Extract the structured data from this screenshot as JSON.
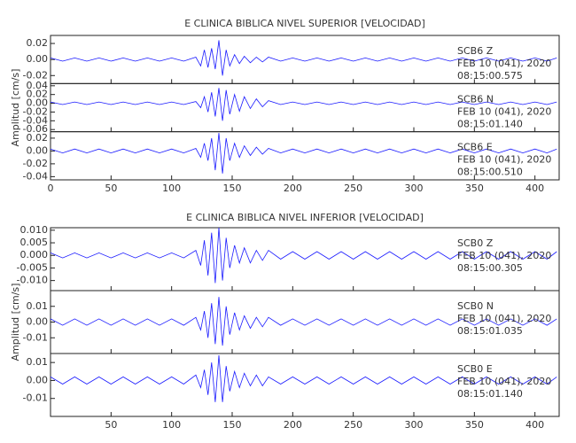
{
  "chart_data": [
    {
      "type": "line",
      "title": "E CLINICA BIBLICA NIVEL SUPERIOR [VELOCIDAD]",
      "ylabel": "Amplitud [cm/s]",
      "xlim": [
        0,
        420
      ],
      "xticks": [
        0,
        50,
        100,
        150,
        200,
        250,
        300,
        350,
        400
      ],
      "x": [
        0,
        10,
        20,
        30,
        40,
        50,
        60,
        70,
        80,
        90,
        100,
        110,
        120,
        124,
        127,
        130,
        133,
        136,
        139,
        142,
        145,
        148,
        152,
        156,
        160,
        165,
        170,
        175,
        180,
        190,
        200,
        210,
        220,
        230,
        240,
        250,
        260,
        270,
        280,
        290,
        300,
        310,
        320,
        330,
        340,
        350,
        360,
        370,
        380,
        390,
        400,
        410,
        418
      ],
      "series": [
        {
          "name": "SCB6   Z",
          "date": "FEB 10 (041), 2020",
          "time": "08:15:00.575",
          "color": "#1a1aff",
          "ylim": [
            -0.03,
            0.03
          ],
          "yticks": [
            {
              "value": 0.02,
              "label": "0.02"
            },
            {
              "value": 0,
              "label": "0.00"
            },
            {
              "value": -0.02,
              "label": "-0.02"
            }
          ],
          "values": [
            0.002,
            -0.002,
            0.002,
            -0.002,
            0.002,
            -0.002,
            0.002,
            -0.002,
            0.002,
            -0.002,
            0.002,
            -0.002,
            0.003,
            -0.008,
            0.012,
            -0.01,
            0.014,
            -0.012,
            0.024,
            -0.02,
            0.012,
            -0.008,
            0.006,
            -0.005,
            0.004,
            -0.004,
            0.003,
            -0.003,
            0.003,
            -0.002,
            0.002,
            -0.002,
            0.002,
            -0.002,
            0.002,
            -0.002,
            0.002,
            -0.002,
            0.002,
            -0.002,
            0.002,
            -0.002,
            0.002,
            -0.002,
            0.002,
            -0.002,
            0.002,
            -0.002,
            0.002,
            -0.002,
            0.002,
            -0.002,
            0.002
          ]
        },
        {
          "name": "SCB6   N",
          "date": "FEB 10 (041), 2020",
          "time": "08:15:01.140",
          "color": "#1a1aff",
          "ylim": [
            -0.065,
            0.045
          ],
          "yticks": [
            {
              "value": 0.04,
              "label": "0.04"
            },
            {
              "value": 0.02,
              "label": "0.02"
            },
            {
              "value": 0,
              "label": "0.00"
            },
            {
              "value": -0.02,
              "label": "-0.02"
            },
            {
              "value": -0.04,
              "label": "-0.04"
            },
            {
              "value": -0.06,
              "label": "-0.06"
            }
          ],
          "values": [
            0.003,
            -0.003,
            0.003,
            -0.003,
            0.003,
            -0.003,
            0.003,
            -0.003,
            0.003,
            -0.003,
            0.003,
            -0.003,
            0.004,
            -0.01,
            0.015,
            -0.02,
            0.025,
            -0.03,
            0.035,
            -0.04,
            0.03,
            -0.025,
            0.02,
            -0.018,
            0.015,
            -0.012,
            0.01,
            -0.008,
            0.006,
            -0.003,
            0.003,
            -0.003,
            0.003,
            -0.003,
            0.003,
            -0.003,
            0.003,
            -0.003,
            0.003,
            -0.003,
            0.003,
            -0.003,
            0.003,
            -0.003,
            0.003,
            -0.003,
            0.003,
            -0.003,
            0.003,
            -0.003,
            0.003,
            -0.003,
            0.003
          ]
        },
        {
          "name": "SCB6   E",
          "date": "FEB 10 (041), 2020",
          "time": "08:15:00.510",
          "color": "#1a1aff",
          "ylim": [
            -0.045,
            0.03
          ],
          "yticks": [
            {
              "value": 0.02,
              "label": "0.02"
            },
            {
              "value": 0,
              "label": "0.00"
            },
            {
              "value": -0.02,
              "label": "-0.02"
            },
            {
              "value": -0.04,
              "label": "-0.04"
            }
          ],
          "values": [
            0.003,
            -0.003,
            0.003,
            -0.003,
            0.003,
            -0.003,
            0.003,
            -0.003,
            0.003,
            -0.003,
            0.003,
            -0.003,
            0.004,
            -0.01,
            0.012,
            -0.015,
            0.02,
            -0.03,
            0.028,
            -0.035,
            0.02,
            -0.015,
            0.012,
            -0.01,
            0.008,
            -0.007,
            0.006,
            -0.005,
            0.004,
            -0.003,
            0.003,
            -0.003,
            0.003,
            -0.003,
            0.003,
            -0.003,
            0.003,
            -0.003,
            0.003,
            -0.003,
            0.003,
            -0.003,
            0.003,
            -0.003,
            0.003,
            -0.003,
            0.003,
            -0.003,
            0.003,
            -0.003,
            0.003,
            -0.003,
            0.003
          ]
        }
      ]
    },
    {
      "type": "line",
      "title": "E CLINICA BIBLICA NIVEL INFERIOR [VELOCIDAD]",
      "ylabel": "Amplitud [cm/s]",
      "xlim": [
        0,
        420
      ],
      "xticks": [
        50,
        100,
        150,
        200,
        250,
        300,
        350,
        400
      ],
      "x": [
        0,
        10,
        20,
        30,
        40,
        50,
        60,
        70,
        80,
        90,
        100,
        110,
        120,
        124,
        127,
        130,
        133,
        136,
        139,
        142,
        145,
        148,
        152,
        156,
        160,
        165,
        170,
        175,
        180,
        190,
        200,
        210,
        220,
        230,
        240,
        250,
        260,
        270,
        280,
        290,
        300,
        310,
        320,
        330,
        340,
        350,
        360,
        370,
        380,
        390,
        400,
        410,
        418
      ],
      "series": [
        {
          "name": "SCB0   Z",
          "date": "FEB 10 (041), 2020",
          "time": "08:15:00.305",
          "color": "#1a1aff",
          "ylim": [
            -0.014,
            0.011
          ],
          "yticks": [
            {
              "value": 0.01,
              "label": "0.010"
            },
            {
              "value": 0.005,
              "label": "0.005"
            },
            {
              "value": 0,
              "label": "0.000"
            },
            {
              "value": -0.005,
              "label": "-0.005"
            },
            {
              "value": -0.01,
              "label": "-0.010"
            }
          ],
          "values": [
            0.001,
            -0.001,
            0.001,
            -0.001,
            0.001,
            -0.001,
            0.001,
            -0.001,
            0.001,
            -0.001,
            0.001,
            -0.001,
            0.002,
            -0.004,
            0.006,
            -0.008,
            0.009,
            -0.011,
            0.011,
            -0.01,
            0.007,
            -0.005,
            0.004,
            -0.003,
            0.003,
            -0.003,
            0.002,
            -0.002,
            0.002,
            -0.0015,
            0.0015,
            -0.0015,
            0.0015,
            -0.0015,
            0.0015,
            -0.0015,
            0.0015,
            -0.0015,
            0.0015,
            -0.0015,
            0.0015,
            -0.0015,
            0.0015,
            -0.0015,
            0.0015,
            -0.0015,
            0.0015,
            -0.0015,
            0.0015,
            -0.0015,
            0.0015,
            -0.0015,
            0.0015
          ]
        },
        {
          "name": "SCB0   N",
          "date": "FEB 10 (041), 2020",
          "time": "08:15:01.035",
          "color": "#1a1aff",
          "ylim": [
            -0.02,
            0.02
          ],
          "yticks": [
            {
              "value": 0.01,
              "label": "0.01"
            },
            {
              "value": 0,
              "label": "0.00"
            },
            {
              "value": -0.01,
              "label": "-0.01"
            }
          ],
          "values": [
            0.002,
            -0.002,
            0.002,
            -0.002,
            0.002,
            -0.002,
            0.002,
            -0.002,
            0.002,
            -0.002,
            0.002,
            -0.002,
            0.003,
            -0.005,
            0.007,
            -0.01,
            0.012,
            -0.014,
            0.016,
            -0.015,
            0.01,
            -0.008,
            0.006,
            -0.005,
            0.004,
            -0.004,
            0.003,
            -0.003,
            0.003,
            -0.002,
            0.002,
            -0.002,
            0.002,
            -0.002,
            0.002,
            -0.002,
            0.002,
            -0.002,
            0.002,
            -0.002,
            0.002,
            -0.002,
            0.002,
            -0.002,
            0.002,
            -0.002,
            0.002,
            -0.002,
            0.002,
            -0.002,
            0.002,
            -0.002,
            0.002
          ]
        },
        {
          "name": "SCB0   E",
          "date": "FEB 10 (041), 2020",
          "time": "08:15:01.140",
          "color": "#1a1aff",
          "ylim": [
            -0.02,
            0.015
          ],
          "yticks": [
            {
              "value": 0.01,
              "label": "0.01"
            },
            {
              "value": 0,
              "label": "0.00"
            },
            {
              "value": -0.01,
              "label": "-0.01"
            }
          ],
          "values": [
            0.002,
            -0.002,
            0.002,
            -0.002,
            0.002,
            -0.002,
            0.002,
            -0.002,
            0.002,
            -0.002,
            0.002,
            -0.002,
            0.003,
            -0.004,
            0.006,
            -0.008,
            0.01,
            -0.012,
            0.014,
            -0.012,
            0.008,
            -0.006,
            0.005,
            -0.004,
            0.004,
            -0.003,
            0.003,
            -0.003,
            0.002,
            -0.002,
            0.002,
            -0.002,
            0.002,
            -0.002,
            0.002,
            -0.002,
            0.002,
            -0.002,
            0.002,
            -0.002,
            0.002,
            -0.002,
            0.002,
            -0.002,
            0.002,
            -0.002,
            0.002,
            -0.002,
            0.002,
            -0.002,
            0.002,
            -0.002,
            0.002
          ]
        }
      ]
    }
  ]
}
